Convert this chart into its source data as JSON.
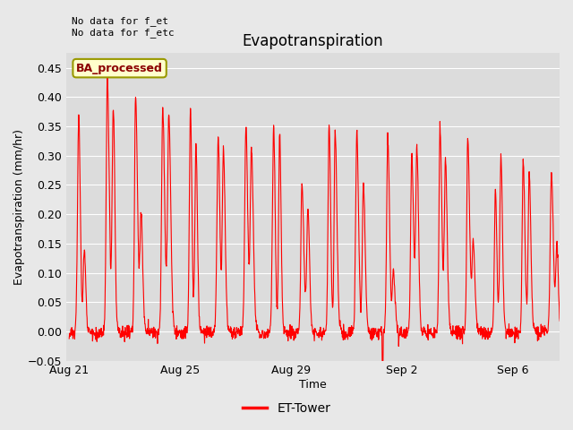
{
  "title": "Evapotranspiration",
  "xlabel": "Time",
  "ylabel": "Evapotranspiration (mm/hr)",
  "ylim": [
    -0.05,
    0.475
  ],
  "annotation_text": "No data for f_et\nNo data for f_etc",
  "box_label": "BA_processed",
  "legend_label": "ET-Tower",
  "line_color": "#FF0000",
  "bg_color": "#E8E8E8",
  "plot_bg_color": "#DCDCDC",
  "grid_color": "#FFFFFF",
  "box_face_color": "#FFFFCC",
  "box_edge_color": "#999900",
  "title_fontsize": 12,
  "label_fontsize": 9,
  "tick_fontsize": 9,
  "annotation_fontsize": 8,
  "x_tick_labels": [
    "Aug 21",
    "Aug 25",
    "Aug 29",
    "Sep 2",
    "Sep 6"
  ],
  "x_tick_positions": [
    0,
    4,
    8,
    12,
    16
  ]
}
